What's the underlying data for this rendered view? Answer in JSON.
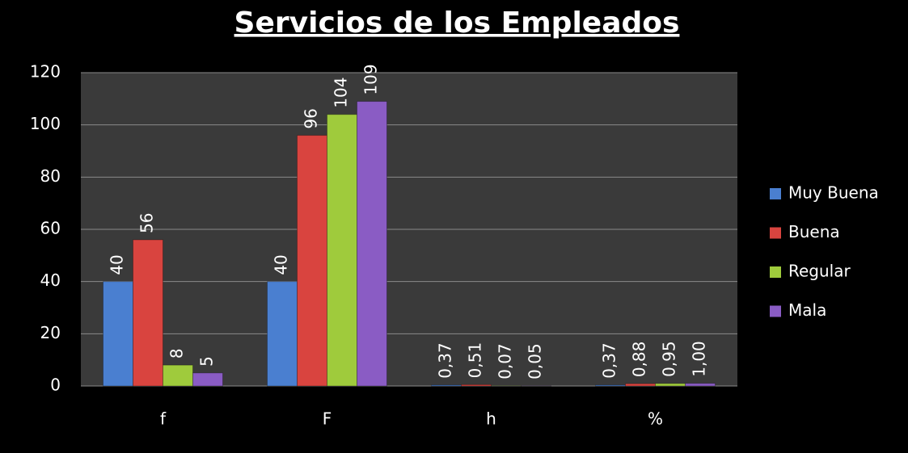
{
  "chart_data": {
    "type": "bar",
    "title": "Servicios de los Empleados",
    "categories": [
      "f",
      "F",
      "h",
      "%"
    ],
    "series": [
      {
        "name": "Muy Buena",
        "color": "#4a7fd0",
        "values": [
          40,
          40,
          0.37,
          0.37
        ],
        "value_labels": [
          "40",
          "40",
          "0,37",
          "0,37"
        ]
      },
      {
        "name": "Buena",
        "color": "#d9443f",
        "values": [
          56,
          96,
          0.51,
          0.88
        ],
        "value_labels": [
          "56",
          "96",
          "0,51",
          "0,88"
        ]
      },
      {
        "name": "Regular",
        "color": "#9fcb3c",
        "values": [
          8,
          104,
          0.07,
          0.95
        ],
        "value_labels": [
          "8",
          "104",
          "0,07",
          "0,95"
        ]
      },
      {
        "name": "Mala",
        "color": "#8a5cc4",
        "values": [
          5,
          109,
          0.05,
          1.0
        ],
        "value_labels": [
          "5",
          "109",
          "0,05",
          "1,00"
        ]
      }
    ],
    "ylim": [
      0,
      120
    ],
    "yticks": [
      0,
      20,
      40,
      60,
      80,
      100,
      120
    ],
    "grid": true,
    "legend": "right"
  }
}
